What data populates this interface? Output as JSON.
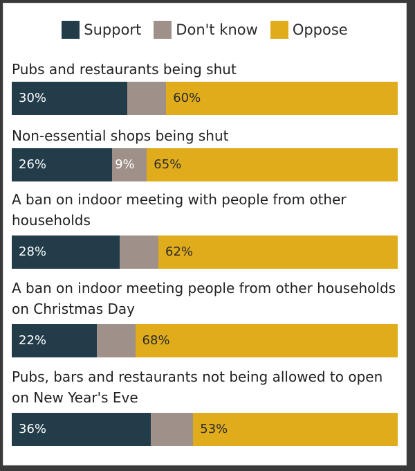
{
  "chart_data": {
    "type": "bar",
    "orientation": "horizontal-stacked",
    "legend_position": "top",
    "series": [
      {
        "name": "Support",
        "color": "#233c4a"
      },
      {
        "name": "Don't know",
        "color": "#a0908a"
      },
      {
        "name": "Oppose",
        "color": "#e0ac1c"
      }
    ],
    "categories": [
      {
        "label": "Pubs and restaurants being shut",
        "values": [
          30,
          10,
          60
        ],
        "labels": [
          "30%",
          "",
          "60%"
        ]
      },
      {
        "label": "Non-essential shops being shut",
        "values": [
          26,
          9,
          65
        ],
        "labels": [
          "26%",
          "9%",
          "65%"
        ]
      },
      {
        "label": "A ban on indoor meeting with people from other households",
        "values": [
          28,
          10,
          62
        ],
        "labels": [
          "28%",
          "",
          "62%"
        ]
      },
      {
        "label": "A ban on indoor meeting people from other households on Christmas Day",
        "values": [
          22,
          10,
          68
        ],
        "labels": [
          "22%",
          "",
          "68%"
        ]
      },
      {
        "label": "Pubs, bars and restaurants not being allowed to open on New Year's Eve",
        "values": [
          36,
          11,
          53
        ],
        "labels": [
          "36%",
          "",
          "53%"
        ]
      }
    ]
  }
}
